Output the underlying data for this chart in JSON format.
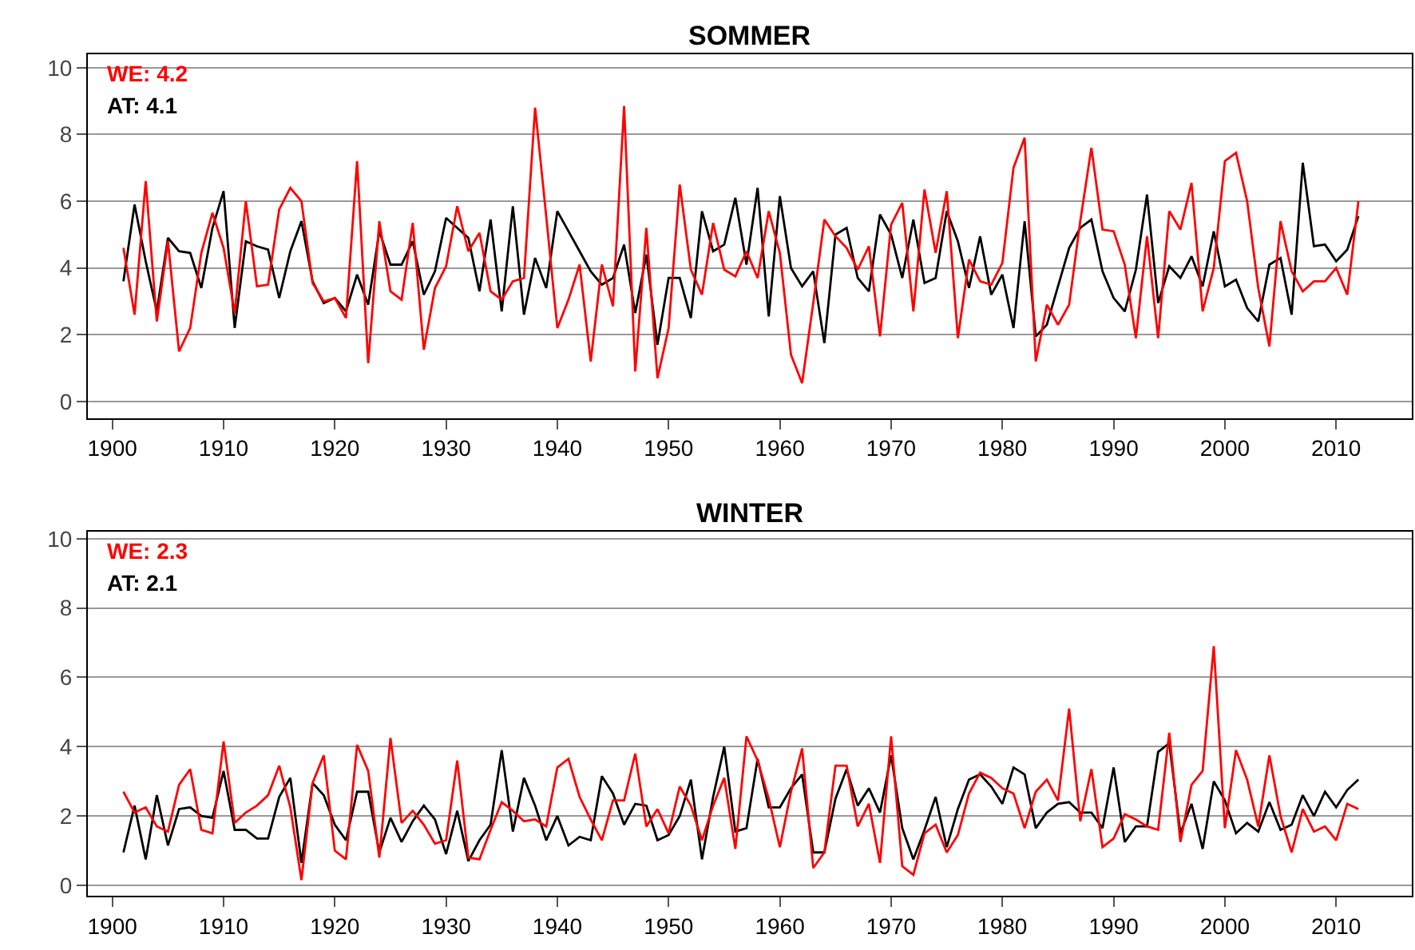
{
  "chart_data": [
    {
      "type": "line",
      "title": "SOMMER",
      "x": [
        1901,
        1902,
        1903,
        1904,
        1905,
        1906,
        1907,
        1908,
        1909,
        1910,
        1911,
        1912,
        1913,
        1914,
        1915,
        1916,
        1917,
        1918,
        1919,
        1920,
        1921,
        1922,
        1923,
        1924,
        1925,
        1926,
        1927,
        1928,
        1929,
        1930,
        1931,
        1932,
        1933,
        1934,
        1935,
        1936,
        1937,
        1938,
        1939,
        1940,
        1941,
        1942,
        1943,
        1944,
        1945,
        1946,
        1947,
        1948,
        1949,
        1950,
        1951,
        1952,
        1953,
        1954,
        1955,
        1956,
        1957,
        1958,
        1959,
        1960,
        1961,
        1962,
        1963,
        1964,
        1965,
        1966,
        1967,
        1968,
        1969,
        1970,
        1971,
        1972,
        1973,
        1974,
        1975,
        1976,
        1977,
        1978,
        1979,
        1980,
        1981,
        1982,
        1983,
        1984,
        1985,
        1986,
        1987,
        1988,
        1989,
        1990,
        1991,
        1992,
        1993,
        1994,
        1995,
        1996,
        1997,
        1998,
        1999,
        2000,
        2001,
        2002,
        2003,
        2004,
        2005,
        2006,
        2007,
        2008,
        2009,
        2010,
        2011,
        2012
      ],
      "series": [
        {
          "name": "AT: 4.1",
          "color": "#000000",
          "values": [
            3.6,
            5.9,
            4.2,
            2.7,
            4.9,
            4.5,
            4.45,
            3.4,
            5.2,
            6.3,
            2.2,
            4.8,
            4.65,
            4.55,
            3.1,
            4.5,
            5.4,
            3.6,
            2.95,
            3.1,
            2.7,
            3.8,
            2.9,
            5.1,
            4.1,
            4.1,
            4.8,
            3.2,
            3.9,
            5.5,
            5.2,
            4.9,
            3.3,
            5.45,
            2.7,
            5.85,
            2.6,
            4.3,
            3.4,
            5.7,
            5.1,
            4.5,
            3.9,
            3.5,
            3.7,
            4.7,
            2.65,
            4.4,
            1.7,
            3.7,
            3.7,
            2.5,
            5.7,
            4.5,
            4.7,
            6.1,
            4.1,
            6.4,
            2.55,
            6.15,
            4.0,
            3.45,
            3.9,
            1.75,
            5.0,
            5.2,
            3.7,
            3.3,
            5.6,
            5.0,
            3.7,
            5.45,
            3.55,
            3.7,
            5.7,
            4.8,
            3.4,
            4.95,
            3.2,
            3.8,
            2.2,
            5.4,
            1.95,
            2.3,
            3.45,
            4.6,
            5.2,
            5.45,
            3.9,
            3.1,
            2.7,
            3.95,
            6.2,
            2.95,
            4.05,
            3.7,
            4.35,
            3.45,
            5.1,
            3.45,
            3.65,
            2.8,
            2.4,
            4.1,
            4.3,
            2.6,
            7.15,
            4.65,
            4.7,
            4.2,
            4.55,
            5.55
          ]
        },
        {
          "name": "WE: 4.2",
          "color": "#ff0000",
          "values": [
            4.6,
            2.6,
            6.6,
            2.4,
            4.8,
            1.5,
            2.2,
            4.45,
            5.65,
            4.6,
            2.65,
            6.0,
            3.45,
            3.5,
            5.75,
            6.4,
            6.0,
            3.55,
            3.0,
            3.1,
            2.5,
            7.2,
            1.15,
            5.4,
            3.3,
            3.05,
            5.35,
            1.55,
            3.4,
            4.05,
            5.85,
            4.5,
            5.05,
            3.3,
            3.05,
            3.6,
            3.7,
            8.8,
            5.55,
            2.2,
            3.05,
            4.1,
            1.2,
            4.1,
            2.85,
            8.85,
            0.9,
            5.2,
            0.7,
            2.2,
            6.5,
            3.95,
            3.2,
            5.35,
            3.95,
            3.75,
            4.5,
            3.7,
            5.7,
            4.45,
            1.4,
            0.55,
            2.95,
            5.45,
            4.95,
            4.6,
            3.95,
            4.65,
            1.95,
            5.3,
            5.95,
            2.7,
            6.35,
            4.45,
            6.3,
            1.9,
            4.25,
            3.6,
            3.5,
            4.15,
            7.0,
            7.9,
            1.2,
            2.9,
            2.3,
            2.9,
            5.4,
            7.6,
            5.15,
            5.1,
            4.1,
            1.9,
            4.95,
            1.9,
            5.7,
            5.15,
            6.55,
            2.7,
            4.0,
            7.2,
            7.45,
            6.0,
            3.4,
            1.65,
            5.4,
            3.9,
            3.3,
            3.6,
            3.6,
            4.0,
            3.2,
            6.0
          ]
        }
      ],
      "xlim": [
        1897.8,
        2016.8
      ],
      "ylim": [
        -0.5,
        10.4
      ],
      "xticks": [
        1900,
        1910,
        1920,
        1930,
        1940,
        1950,
        1960,
        1970,
        1980,
        1990,
        2000,
        2010
      ],
      "yticks": [
        0,
        2,
        4,
        6,
        8,
        10
      ],
      "grid": "y",
      "legend": "top left"
    },
    {
      "type": "line",
      "title": "WINTER",
      "x": [
        1901,
        1902,
        1903,
        1904,
        1905,
        1906,
        1907,
        1908,
        1909,
        1910,
        1911,
        1912,
        1913,
        1914,
        1915,
        1916,
        1917,
        1918,
        1919,
        1920,
        1921,
        1922,
        1923,
        1924,
        1925,
        1926,
        1927,
        1928,
        1929,
        1930,
        1931,
        1932,
        1933,
        1934,
        1935,
        1936,
        1937,
        1938,
        1939,
        1940,
        1941,
        1942,
        1943,
        1944,
        1945,
        1946,
        1947,
        1948,
        1949,
        1950,
        1951,
        1952,
        1953,
        1954,
        1955,
        1956,
        1957,
        1958,
        1959,
        1960,
        1961,
        1962,
        1963,
        1964,
        1965,
        1966,
        1967,
        1968,
        1969,
        1970,
        1971,
        1972,
        1973,
        1974,
        1975,
        1976,
        1977,
        1978,
        1979,
        1980,
        1981,
        1982,
        1983,
        1984,
        1985,
        1986,
        1987,
        1988,
        1989,
        1990,
        1991,
        1992,
        1993,
        1994,
        1995,
        1996,
        1997,
        1998,
        1999,
        2000,
        2001,
        2002,
        2003,
        2004,
        2005,
        2006,
        2007,
        2008,
        2009,
        2010,
        2011,
        2012
      ],
      "series": [
        {
          "name": "AT: 2.1",
          "color": "#000000",
          "values": [
            0.95,
            2.3,
            0.75,
            2.6,
            1.15,
            2.2,
            2.25,
            2.0,
            1.95,
            3.3,
            1.6,
            1.6,
            1.35,
            1.35,
            2.55,
            3.1,
            0.65,
            2.95,
            2.6,
            1.75,
            1.3,
            2.7,
            2.7,
            0.95,
            1.95,
            1.25,
            1.85,
            2.3,
            1.9,
            0.9,
            2.15,
            0.7,
            1.3,
            1.75,
            3.9,
            1.55,
            3.1,
            2.3,
            1.3,
            2.0,
            1.15,
            1.4,
            1.3,
            3.15,
            2.65,
            1.75,
            2.35,
            2.3,
            1.3,
            1.45,
            2.0,
            3.05,
            0.75,
            2.55,
            4.0,
            1.55,
            1.65,
            3.65,
            2.25,
            2.25,
            2.8,
            3.2,
            0.95,
            0.95,
            2.5,
            3.35,
            2.3,
            2.8,
            2.1,
            3.75,
            1.65,
            0.75,
            1.6,
            2.55,
            1.1,
            2.2,
            3.05,
            3.2,
            2.85,
            2.35,
            3.4,
            3.2,
            1.65,
            2.1,
            2.35,
            2.4,
            2.1,
            2.1,
            1.65,
            3.4,
            1.25,
            1.7,
            1.7,
            3.85,
            4.1,
            1.5,
            2.35,
            1.05,
            3.0,
            2.45,
            1.5,
            1.8,
            1.55,
            2.4,
            1.6,
            1.75,
            2.6,
            2.0,
            2.7,
            2.25,
            2.75,
            3.05
          ]
        },
        {
          "name": "WE: 2.3",
          "color": "#ff0000",
          "values": [
            2.7,
            2.1,
            2.25,
            1.7,
            1.55,
            2.9,
            3.35,
            1.6,
            1.5,
            4.15,
            1.8,
            2.1,
            2.3,
            2.6,
            3.45,
            2.25,
            0.15,
            2.95,
            3.75,
            1.0,
            0.75,
            4.05,
            3.3,
            0.8,
            4.25,
            1.8,
            2.15,
            1.75,
            1.2,
            1.3,
            3.6,
            0.8,
            0.75,
            1.6,
            2.4,
            2.15,
            1.85,
            1.9,
            1.7,
            3.4,
            3.65,
            2.55,
            1.9,
            1.3,
            2.45,
            2.45,
            3.8,
            1.7,
            2.2,
            1.5,
            2.85,
            2.3,
            1.3,
            2.3,
            3.1,
            1.05,
            4.3,
            3.6,
            2.5,
            1.1,
            2.7,
            3.95,
            0.5,
            0.95,
            3.45,
            3.45,
            1.7,
            2.35,
            0.65,
            4.3,
            0.55,
            0.3,
            1.5,
            1.75,
            0.95,
            1.45,
            2.65,
            3.25,
            3.1,
            2.8,
            2.65,
            1.65,
            2.7,
            3.05,
            2.45,
            5.1,
            1.85,
            3.35,
            1.1,
            1.35,
            2.05,
            1.9,
            1.7,
            1.6,
            4.4,
            1.25,
            2.9,
            3.3,
            6.9,
            1.65,
            3.9,
            3.05,
            1.7,
            3.75,
            2.0,
            0.95,
            2.2,
            1.55,
            1.7,
            1.3,
            2.35,
            2.2
          ]
        }
      ],
      "xlim": [
        1897.8,
        2016.8
      ],
      "ylim": [
        -0.3,
        10.2
      ],
      "xticks": [
        1900,
        1910,
        1920,
        1930,
        1940,
        1950,
        1960,
        1970,
        1980,
        1990,
        2000,
        2010
      ],
      "yticks": [
        0,
        2,
        4,
        6,
        8,
        10
      ],
      "grid": "y",
      "legend": "top left"
    }
  ]
}
